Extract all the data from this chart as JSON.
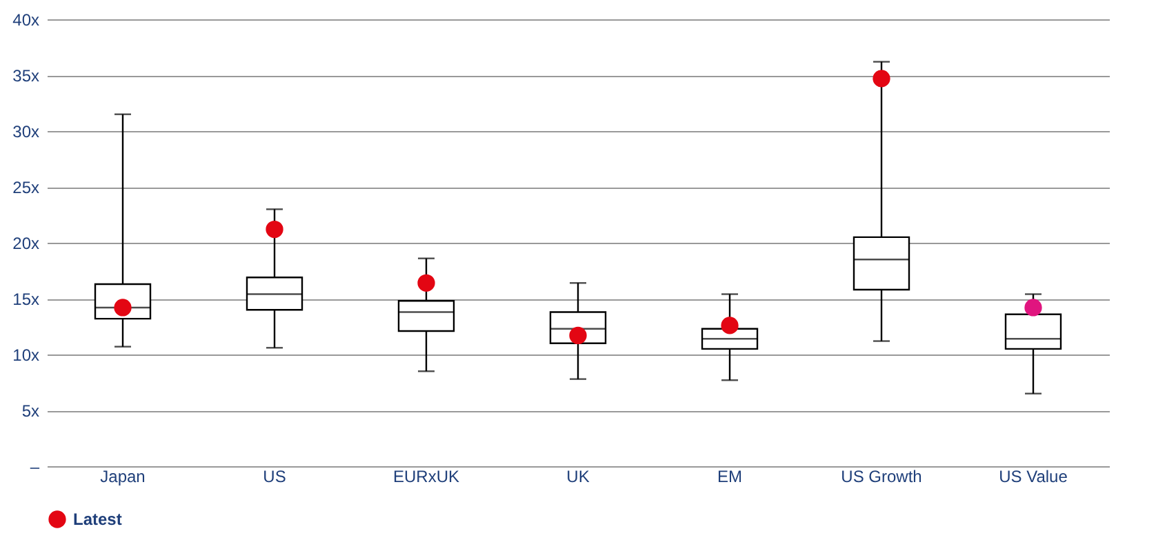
{
  "chart_data": {
    "type": "box",
    "categories": [
      "Japan",
      "US",
      "EURxUK",
      "UK",
      "EM",
      "US Growth",
      "US Value"
    ],
    "boxes": [
      {
        "low": 10.7,
        "q1": 13.2,
        "median": 14.2,
        "q3": 16.3,
        "high": 31.5
      },
      {
        "low": 10.6,
        "q1": 14.0,
        "median": 15.4,
        "q3": 16.9,
        "high": 23.0
      },
      {
        "low": 8.5,
        "q1": 12.1,
        "median": 13.8,
        "q3": 14.8,
        "high": 18.6
      },
      {
        "low": 7.8,
        "q1": 11.0,
        "median": 12.3,
        "q3": 13.8,
        "high": 16.4
      },
      {
        "low": 7.7,
        "q1": 10.5,
        "median": 11.4,
        "q3": 12.3,
        "high": 15.4
      },
      {
        "low": 11.2,
        "q1": 15.8,
        "median": 18.5,
        "q3": 20.5,
        "high": 36.2
      },
      {
        "low": 6.5,
        "q1": 10.5,
        "median": 11.4,
        "q3": 13.6,
        "high": 15.4
      }
    ],
    "series": [
      {
        "name": "Latest",
        "type": "scatter",
        "color": "#e30613",
        "colors": [
          "#e30613",
          "#e30613",
          "#e30613",
          "#e30613",
          "#e30613",
          "#e30613",
          "#e0157f"
        ],
        "x": [
          "Japan",
          "US",
          "EURxUK",
          "UK",
          "EM",
          "US Growth",
          "US Value"
        ],
        "values": [
          14.2,
          21.2,
          16.4,
          11.7,
          12.6,
          34.7,
          14.2
        ]
      }
    ],
    "ylim": [
      0,
      40
    ],
    "yticks": [
      {
        "value": 0,
        "label": "–"
      },
      {
        "value": 5,
        "label": "5x"
      },
      {
        "value": 10,
        "label": "10x"
      },
      {
        "value": 15,
        "label": "15x"
      },
      {
        "value": 20,
        "label": "20x"
      },
      {
        "value": 25,
        "label": "25x"
      },
      {
        "value": 30,
        "label": "30x"
      },
      {
        "value": 35,
        "label": "35x"
      },
      {
        "value": 40,
        "label": "40x"
      }
    ],
    "grid": "y",
    "legend": "bottom",
    "marker": "circle"
  }
}
